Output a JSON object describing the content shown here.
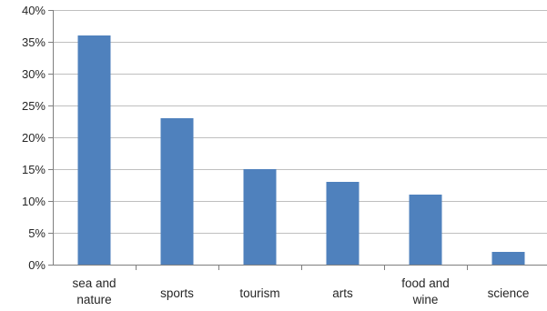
{
  "chart_data": {
    "type": "bar",
    "title": "",
    "xlabel": "",
    "ylabel": "",
    "categories": [
      [
        "sea and",
        "nature"
      ],
      [
        "sports"
      ],
      [
        "tourism"
      ],
      [
        "arts"
      ],
      [
        "food and",
        "wine"
      ],
      [
        "science"
      ]
    ],
    "values": [
      36,
      23,
      15,
      13,
      11,
      2
    ],
    "ylim": [
      0,
      40
    ],
    "y_ticks": [
      0,
      5,
      10,
      15,
      20,
      25,
      30,
      35,
      40
    ],
    "y_tick_labels": [
      "0%",
      "5%",
      "10%",
      "15%",
      "20%",
      "25%",
      "30%",
      "35%",
      "40%"
    ],
    "grid": true,
    "legend": "none",
    "colors": {
      "bar": "#4F81BD",
      "grid": "#BFBFBF",
      "axis": "#7F7F7F",
      "text": "#262626"
    }
  }
}
